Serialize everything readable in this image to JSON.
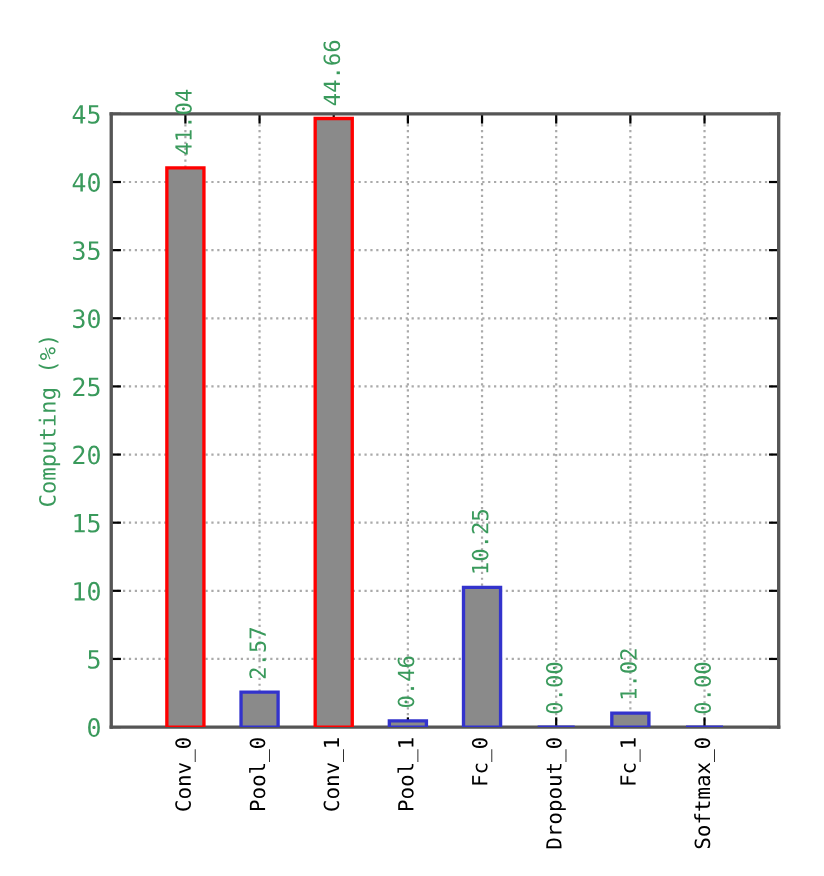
{
  "chart_data": {
    "type": "bar",
    "ylabel": "Computing (%)",
    "categories": [
      "Conv_0",
      "Pool_0",
      "Conv_1",
      "Pool_1",
      "Fc_0",
      "Dropout_0",
      "Fc_1",
      "Softmax_0"
    ],
    "values": [
      41.04,
      2.57,
      44.66,
      0.46,
      10.25,
      0,
      1.02,
      0
    ],
    "value_labels": [
      "41.04",
      "2.57",
      "44.66",
      "0.46",
      "10.25",
      "0.00",
      "1.02",
      "0.00"
    ],
    "colors": [
      "#ff0000",
      "#3333cc",
      "#ff0000",
      "#3333cc",
      "#3333cc",
      "#3333cc",
      "#3333cc",
      "#3333cc"
    ],
    "ylim": [
      0,
      45
    ],
    "yticks": [
      0,
      5,
      10,
      15,
      20,
      25,
      30,
      35,
      40,
      45
    ],
    "grid": true
  }
}
